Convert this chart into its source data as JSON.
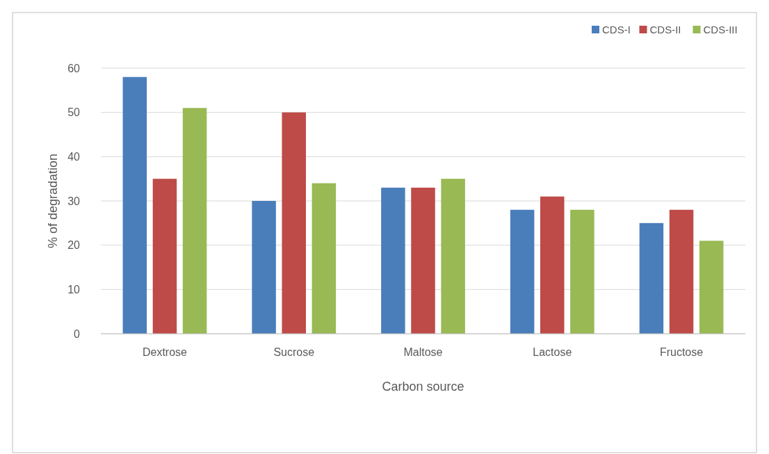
{
  "chart_data": {
    "type": "bar",
    "xlabel": "Carbon source",
    "ylabel": "% of degradation",
    "categories": [
      "Dextrose",
      "Sucrose",
      "Maltose",
      "Lactose",
      "Fructose"
    ],
    "series": [
      {
        "name": "CDS-I",
        "color": "#4a7ebb",
        "values": [
          58,
          30,
          33,
          28,
          25
        ]
      },
      {
        "name": "CDS-II",
        "color": "#be4b48",
        "values": [
          35,
          50,
          33,
          31,
          28
        ]
      },
      {
        "name": "CDS-III",
        "color": "#98b954",
        "values": [
          51,
          34,
          35,
          28,
          21
        ]
      }
    ],
    "ylim": [
      0,
      60
    ],
    "yticks": [
      0,
      10,
      20,
      30,
      40,
      50,
      60
    ],
    "grid": "y",
    "legend": "top right"
  }
}
